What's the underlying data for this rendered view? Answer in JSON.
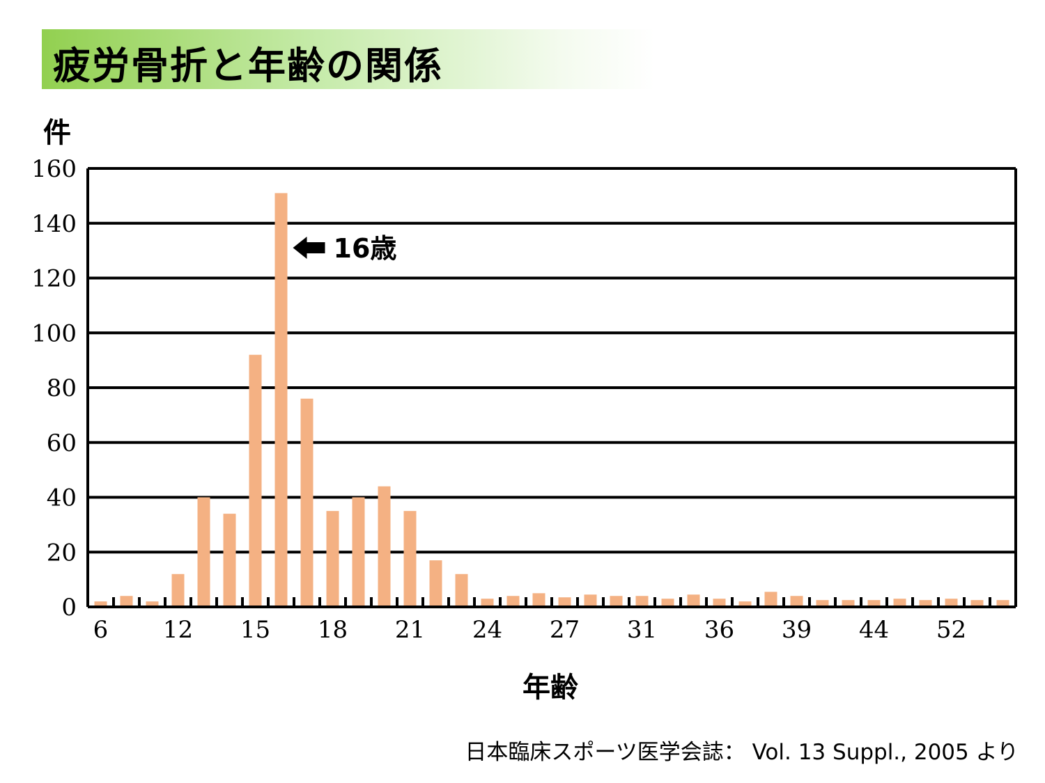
{
  "title": "疲労骨折と年齢の関係",
  "y_unit": "件",
  "x_axis_label": "年齢",
  "source": "日本臨床スポーツ医学会誌： Vol. 13 Suppl., 2005 より",
  "colors": {
    "bar": "#f4b183",
    "title_band": "#92d050",
    "grid": "#000000"
  },
  "chart_data": {
    "type": "bar",
    "title": "疲労骨折と年齢の関係",
    "xlabel": "年齢",
    "ylabel": "件",
    "ylim": [
      0,
      160
    ],
    "yticks": [
      0,
      20,
      40,
      60,
      80,
      100,
      120,
      140,
      160
    ],
    "grid": true,
    "x_tick_labels": [
      "6",
      "12",
      "15",
      "18",
      "21",
      "24",
      "27",
      "31",
      "36",
      "39",
      "44",
      "52"
    ],
    "x_tick_positions": [
      0,
      3,
      6,
      9,
      12,
      15,
      18,
      21,
      24,
      27,
      30,
      33
    ],
    "values": [
      2,
      4,
      2,
      12,
      40,
      34,
      92,
      151,
      76,
      35,
      40,
      44,
      35,
      17,
      12,
      3,
      4,
      5,
      3.5,
      4.5,
      4,
      4,
      3,
      4.5,
      3,
      2,
      5.5,
      4,
      2.5,
      2.5,
      2.5,
      3,
      2.5,
      3,
      2.5,
      2.5
    ],
    "annotation": {
      "text": "16歳",
      "bar_index": 7
    }
  }
}
